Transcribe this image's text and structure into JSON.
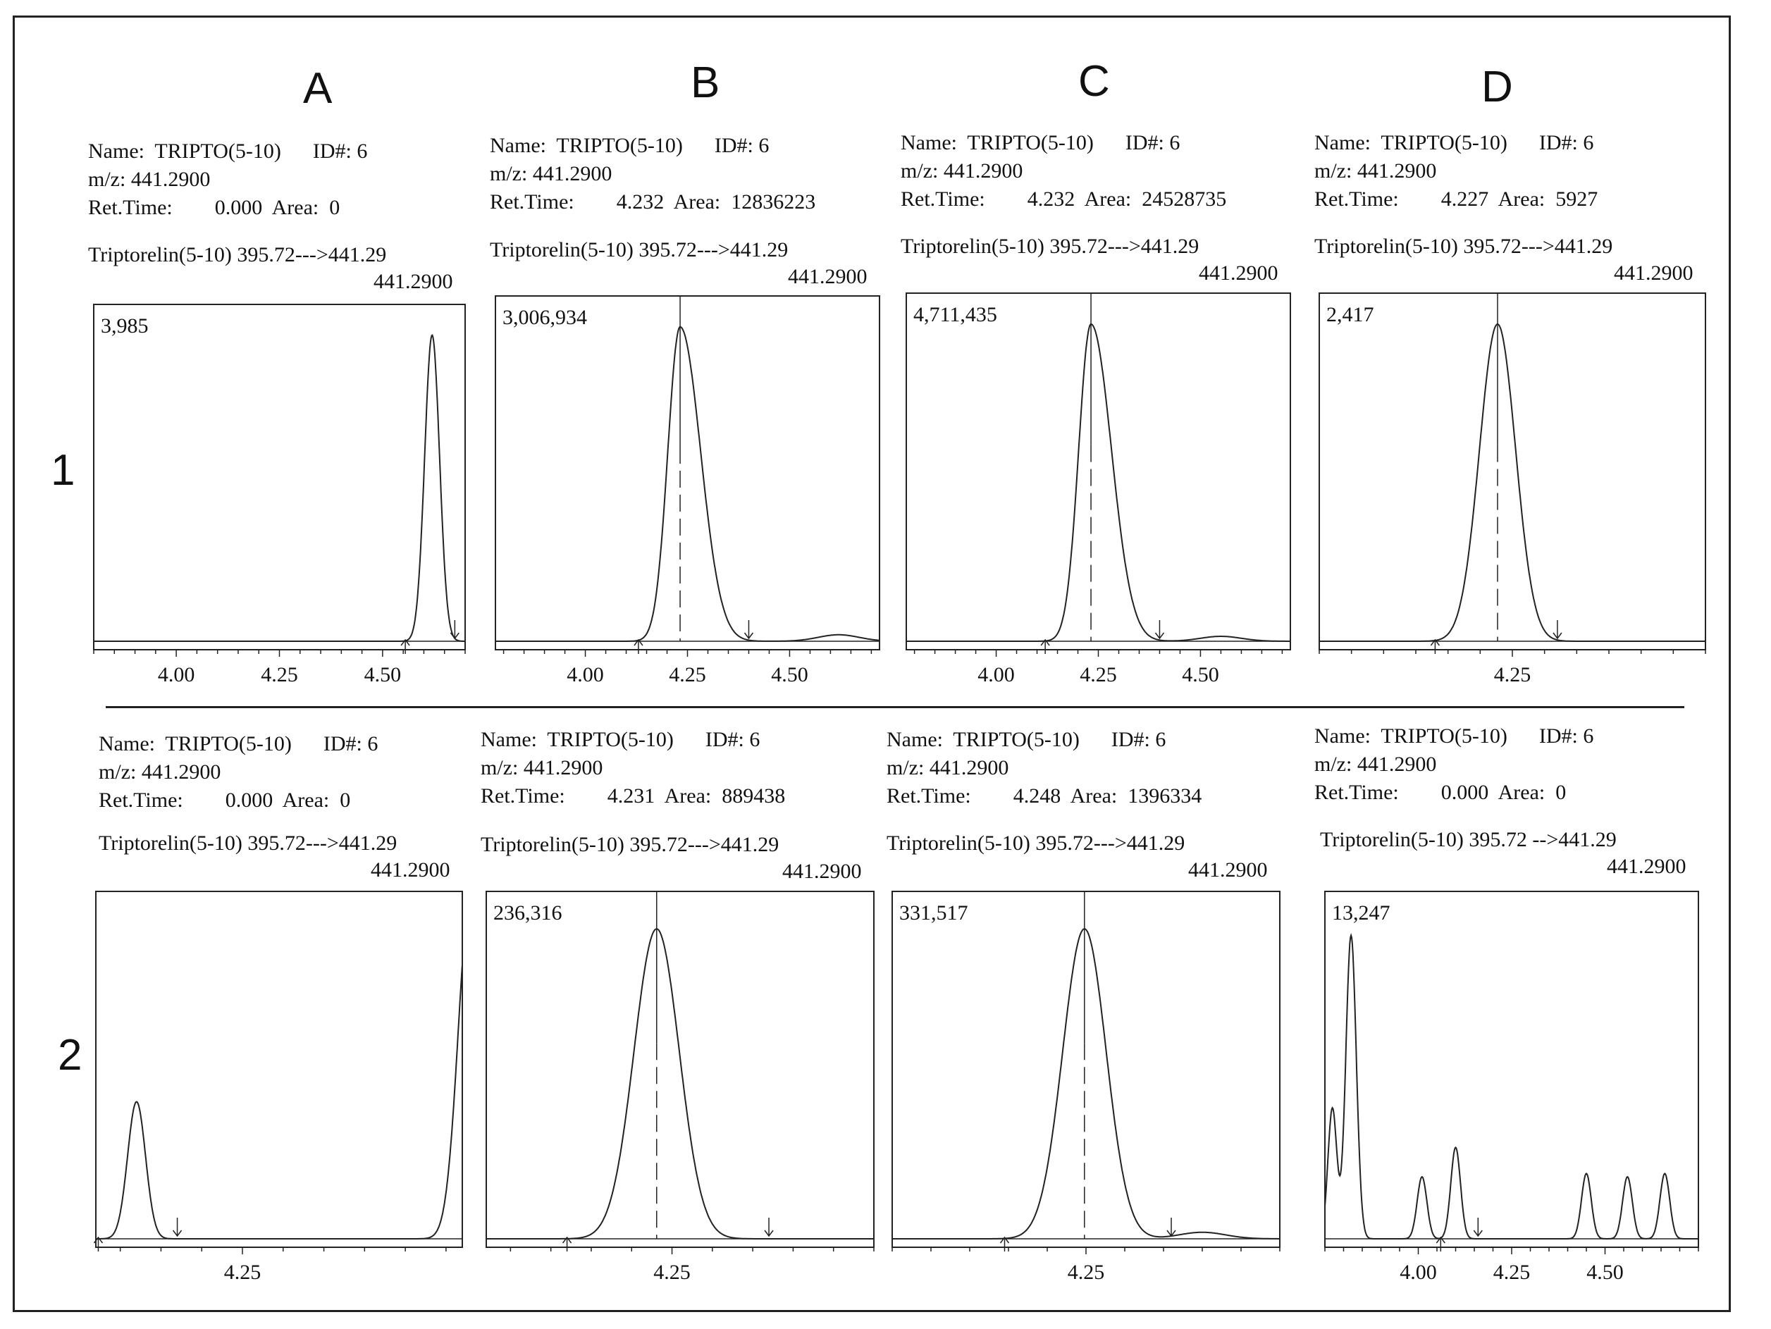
{
  "column_labels": [
    "A",
    "B",
    "C",
    "D"
  ],
  "row_labels": [
    "1",
    "2"
  ],
  "chart_data": [
    {
      "type": "line",
      "id": "1A",
      "name": "TRIPTO(5-10)",
      "id_num": "ID#: 6",
      "mz": "m/z: 441.2900",
      "ret_time": "0.000",
      "area": "0",
      "trace": "Triptorelin(5-10) 395.72--->441.29",
      "trace_mz": "441.2900",
      "max_label": "3,985",
      "xlim": [
        3.8,
        4.7
      ],
      "ticks": [
        "4.00",
        "4.25",
        "4.50"
      ],
      "tick_vals": [
        4.0,
        4.25,
        4.5
      ],
      "peaks": [
        {
          "x": 4.62,
          "h": 0.97,
          "w": 0.018
        }
      ],
      "markers": [
        {
          "type": "up",
          "x": 4.555
        },
        {
          "type": "down",
          "x": 4.675
        }
      ]
    },
    {
      "type": "line",
      "id": "1B",
      "name": "TRIPTO(5-10)",
      "id_num": "ID#: 6",
      "mz": "m/z: 441.2900",
      "ret_time": "4.232",
      "area": "12836223",
      "trace": "Triptorelin(5-10) 395.72--->441.29",
      "trace_mz": "441.2900",
      "max_label": "3,006,934",
      "xlim": [
        3.78,
        4.72
      ],
      "ticks": [
        "4.00",
        "4.25",
        "4.50"
      ],
      "tick_vals": [
        4.0,
        4.25,
        4.5
      ],
      "peaks": [
        {
          "x": 4.232,
          "h": 0.97,
          "w": 0.03,
          "tail": 0.05
        },
        {
          "x": 4.62,
          "h": 0.02,
          "w": 0.05
        }
      ],
      "apex": 4.232,
      "markers": [
        {
          "type": "up",
          "x": 4.13
        },
        {
          "type": "down",
          "x": 4.4
        }
      ]
    },
    {
      "type": "line",
      "id": "1C",
      "name": "TRIPTO(5-10)",
      "id_num": "ID#: 6",
      "mz": "m/z: 441.2900",
      "ret_time": "4.232",
      "area": "24528735",
      "trace": "Triptorelin(5-10) 395.72--->441.29",
      "trace_mz": "441.2900",
      "max_label": "4,711,435",
      "xlim": [
        3.78,
        4.72
      ],
      "ticks": [
        "4.00",
        "4.25",
        "4.50"
      ],
      "tick_vals": [
        4.0,
        4.25,
        4.5
      ],
      "peaks": [
        {
          "x": 4.232,
          "h": 0.97,
          "w": 0.03,
          "tail": 0.05
        },
        {
          "x": 4.55,
          "h": 0.015,
          "w": 0.05
        }
      ],
      "apex": 4.232,
      "markers": [
        {
          "type": "up",
          "x": 4.12
        },
        {
          "type": "down",
          "x": 4.4
        }
      ]
    },
    {
      "type": "line",
      "id": "1D",
      "name": "TRIPTO(5-10)",
      "id_num": "ID#: 6",
      "mz": "m/z: 441.2900",
      "ret_time": "4.227",
      "area": "5927",
      "trace": "Triptorelin(5-10) 395.72--->441.29",
      "trace_mz": "441.2900",
      "max_label": "2,417",
      "xlim": [
        3.95,
        4.55
      ],
      "ticks": [
        "4.25"
      ],
      "tick_vals": [
        4.25
      ],
      "peaks": [
        {
          "x": 4.227,
          "h": 0.97,
          "w": 0.028
        }
      ],
      "apex": 4.227,
      "markers": [
        {
          "type": "up",
          "x": 4.13
        },
        {
          "type": "down",
          "x": 4.32
        }
      ]
    },
    {
      "type": "line",
      "id": "2A",
      "name": "TRIPTO(5-10)",
      "id_num": "ID#: 6",
      "mz": "m/z: 441.2900",
      "ret_time": "0.000",
      "area": "0",
      "trace": "Triptorelin(5-10) 395.72--->441.29",
      "trace_mz": "441.2900",
      "max_label": "",
      "xlim": [
        4.07,
        4.52
      ],
      "ticks": [
        "4.25"
      ],
      "tick_vals": [
        4.25
      ],
      "peaks": [
        {
          "x": 4.12,
          "h": 0.42,
          "w": 0.011
        },
        {
          "x": 4.53,
          "h": 1.05,
          "w": 0.015
        }
      ],
      "markers": [
        {
          "type": "up",
          "x": 4.073
        },
        {
          "type": "down",
          "x": 4.17
        }
      ]
    },
    {
      "type": "line",
      "id": "2B",
      "name": "TRIPTO(5-10)",
      "id_num": "ID#: 6",
      "mz": "m/z: 441.2900",
      "ret_time": "4.231",
      "area": "889438",
      "trace": "Triptorelin(5-10) 395.72--->441.29",
      "trace_mz": "441.2900",
      "max_label": "236,316",
      "xlim": [
        4.02,
        4.5
      ],
      "ticks": [
        "4.25"
      ],
      "tick_vals": [
        4.25
      ],
      "peaks": [
        {
          "x": 4.231,
          "h": 0.95,
          "w": 0.028
        }
      ],
      "apex": 4.231,
      "markers": [
        {
          "type": "up",
          "x": 4.12
        },
        {
          "type": "down",
          "x": 4.37
        }
      ]
    },
    {
      "type": "line",
      "id": "2C",
      "name": "TRIPTO(5-10)",
      "id_num": "ID#: 6",
      "mz": "m/z: 441.2900",
      "ret_time": "4.248",
      "area": "1396334",
      "trace": "Triptorelin(5-10) 395.72--->441.29",
      "trace_mz": "441.2900",
      "max_label": "331,517",
      "xlim": [
        4.0,
        4.5
      ],
      "ticks": [
        "4.25"
      ],
      "tick_vals": [
        4.25
      ],
      "peaks": [
        {
          "x": 4.248,
          "h": 0.95,
          "w": 0.028
        },
        {
          "x": 4.4,
          "h": 0.02,
          "w": 0.03
        }
      ],
      "apex": 4.248,
      "markers": [
        {
          "type": "up",
          "x": 4.145
        },
        {
          "type": "down",
          "x": 4.36
        }
      ]
    },
    {
      "type": "line",
      "id": "2D",
      "name": "TRIPTO(5-10)",
      "id_num": "ID#: 6",
      "mz": "m/z: 441.2900",
      "ret_time": "0.000",
      "area": "0",
      "trace": "Triptorelin(5-10) 395.72 -->441.29",
      "trace_mz": "441.2900",
      "max_label": "13,247",
      "xlim": [
        3.75,
        4.75
      ],
      "ticks": [
        "4.00",
        "4.25",
        "4.50"
      ],
      "tick_vals": [
        4.0,
        4.25,
        4.5
      ],
      "peaks": [
        {
          "x": 3.77,
          "h": 0.4,
          "w": 0.012
        },
        {
          "x": 3.82,
          "h": 0.93,
          "w": 0.014
        },
        {
          "x": 4.01,
          "h": 0.19,
          "w": 0.013
        },
        {
          "x": 4.1,
          "h": 0.28,
          "w": 0.013
        },
        {
          "x": 4.45,
          "h": 0.2,
          "w": 0.013
        },
        {
          "x": 4.56,
          "h": 0.19,
          "w": 0.013
        },
        {
          "x": 4.66,
          "h": 0.2,
          "w": 0.013
        }
      ],
      "markers": [
        {
          "type": "up",
          "x": 4.06
        },
        {
          "type": "down",
          "x": 4.16
        }
      ]
    }
  ]
}
